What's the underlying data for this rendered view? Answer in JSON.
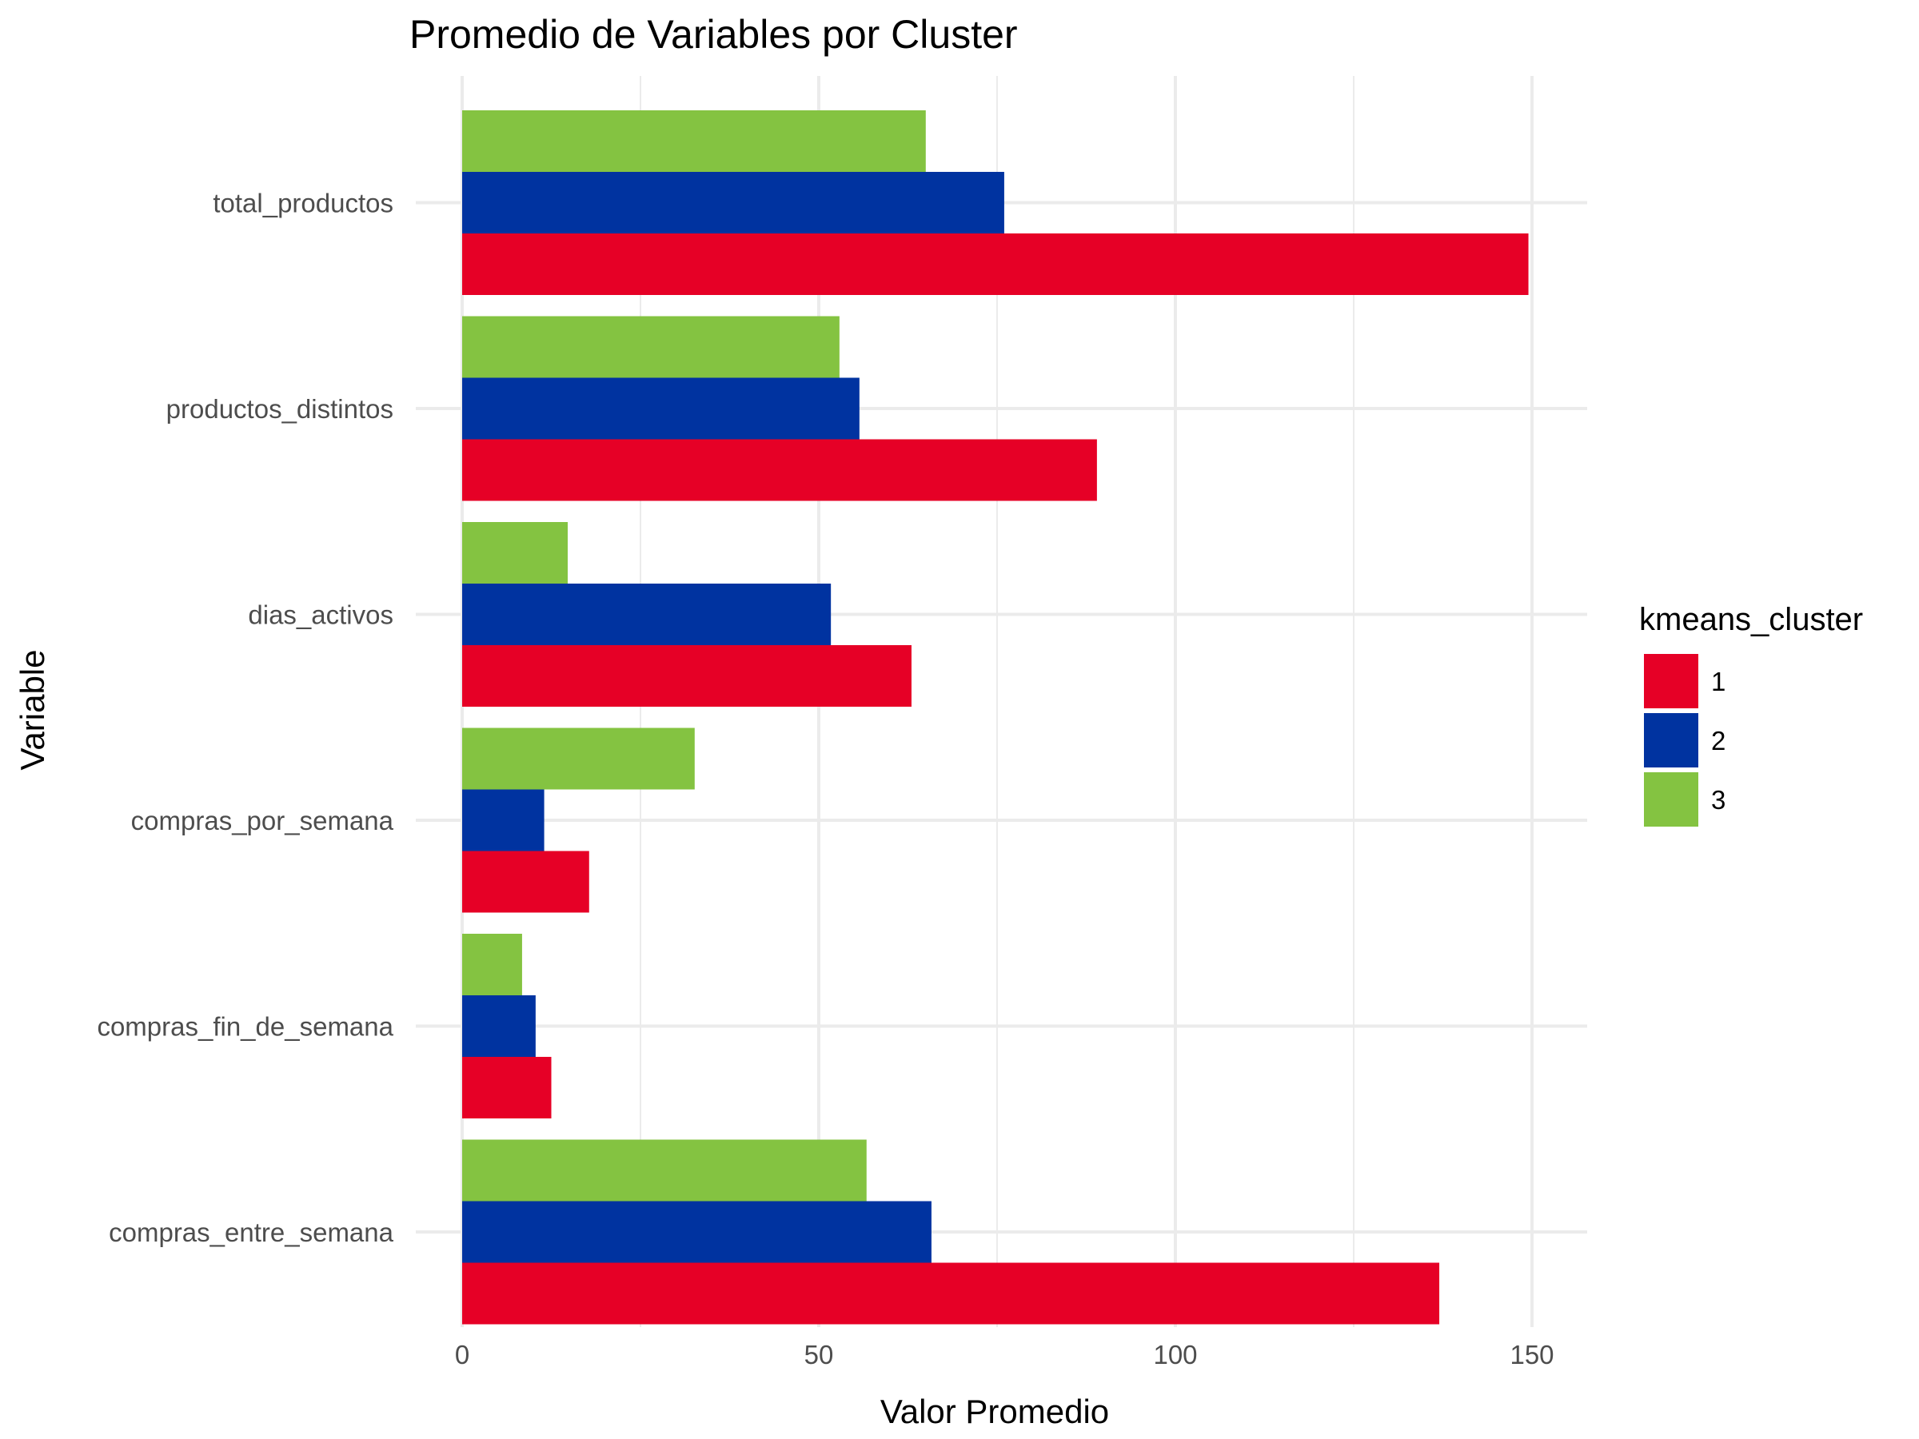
{
  "chart_data": {
    "type": "bar",
    "orientation": "horizontal",
    "title": "Promedio de Variables por Cluster",
    "xlabel": "Valor Promedio",
    "ylabel": "Variable",
    "xlim": [
      0,
      157
    ],
    "xticks": [
      "0",
      "50",
      "100",
      "150"
    ],
    "grid": true,
    "categories": [
      "total_productos",
      "productos_distintos",
      "dias_activos",
      "compras_por_semana",
      "compras_fin_de_semana",
      "compras_entre_semana"
    ],
    "series": [
      {
        "name": "1",
        "color": "#E60026",
        "values": [
          149.5,
          89.0,
          63.0,
          17.8,
          12.5,
          137.0
        ]
      },
      {
        "name": "2",
        "color": "#0033A0",
        "values": [
          76.0,
          55.7,
          51.7,
          11.5,
          10.3,
          65.8
        ]
      },
      {
        "name": "3",
        "color": "#84C341",
        "values": [
          65.0,
          52.9,
          14.8,
          32.6,
          8.4,
          56.7
        ]
      }
    ],
    "legend": {
      "title": "kmeans_cluster",
      "position": "right"
    }
  }
}
